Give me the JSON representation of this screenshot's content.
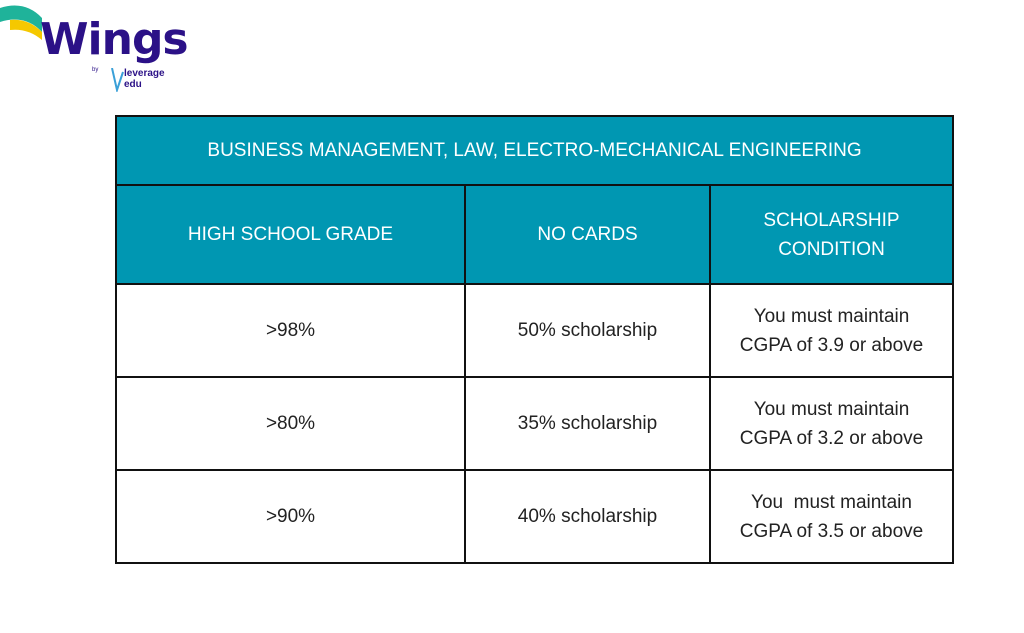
{
  "logo": {
    "name": "Wings",
    "by": "by",
    "brand": "leverage edu"
  },
  "table": {
    "title": "BUSINESS MANAGEMENT, LAW, ELECTRO-MECHANICAL ENGINEERING",
    "headers": [
      "HIGH SCHOOL GRADE",
      "NO CARDS",
      "SCHOLARSHIP CONDITION"
    ],
    "rows": [
      [
        ">98%",
        "50% scholarship",
        "You must maintain CGPA of 3.9 or above"
      ],
      [
        ">80%",
        "35% scholarship",
        "You must maintain CGPA of 3.2 or above"
      ],
      [
        ">90%",
        "40% scholarship",
        "You  must maintain CGPA of 3.5 or above"
      ]
    ]
  },
  "colors": {
    "header_bg": "#0097b2",
    "logo_purple": "#2b1187",
    "logo_teal": "#1fb39a",
    "logo_yellow": "#f5c800"
  }
}
